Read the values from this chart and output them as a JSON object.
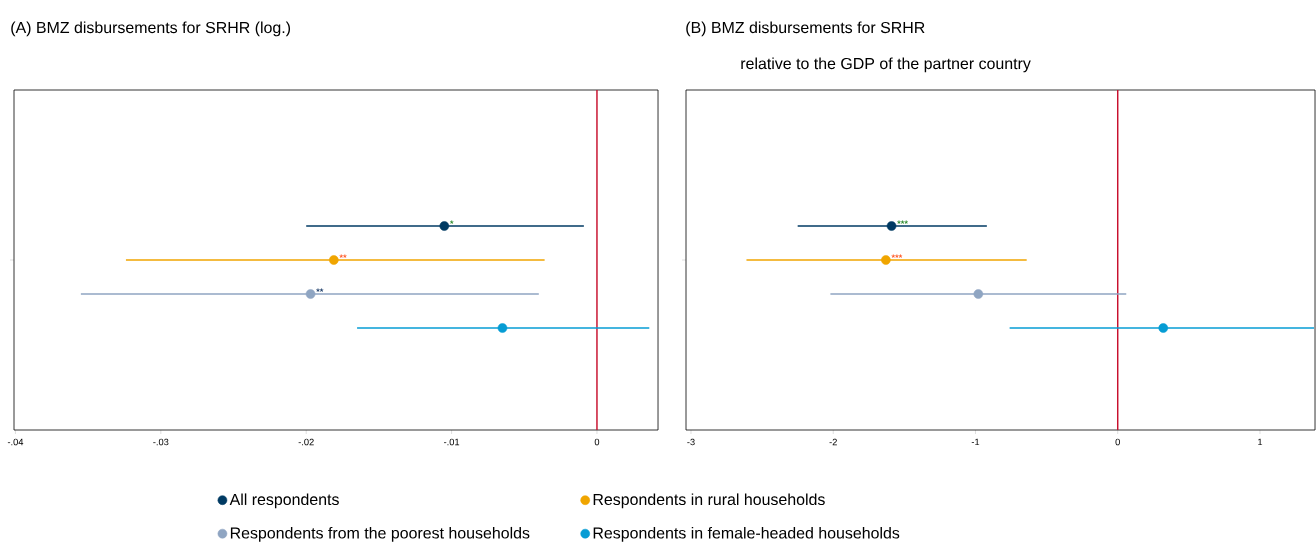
{
  "chart_data": [
    {
      "type": "scatter",
      "orientation": "horizontal",
      "title": "(A)   BMZ disbursements for SRHR (log.)",
      "categories": [
        null
      ],
      "xlim": [
        -0.0401,
        0.0042
      ],
      "xticks": [
        {
          "value": -0.04,
          "label": "-.04"
        },
        {
          "value": -0.03,
          "label": "-.03"
        },
        {
          "value": -0.02,
          "label": "-.02"
        },
        {
          "value": -0.01,
          "label": "-.01"
        },
        0
      ],
      "marker": "circle",
      "legend": "bottom",
      "ref_lines": [
        {
          "axis": "x",
          "value": 0,
          "color": "#c8102e"
        }
      ],
      "series": [
        {
          "name": "All respondents",
          "color": "#003a63",
          "values": [
            -0.0105
          ],
          "errors": [
            [
              -0.02,
              -0.0009
            ]
          ],
          "value_labels": [
            "*"
          ]
        },
        {
          "name": "Respondents in rural households",
          "color": "#f0a500",
          "values": [
            -0.0181
          ],
          "errors": [
            [
              -0.0324,
              -0.0036
            ]
          ],
          "value_labels": [
            "**"
          ]
        },
        {
          "name": "Respondents from the poorest households",
          "color": "#8fa5c2",
          "values": [
            -0.0197
          ],
          "errors": [
            [
              -0.0355,
              -0.004
            ]
          ],
          "value_labels": [
            "**"
          ]
        },
        {
          "name": "Respondents in female-headed households",
          "color": "#069cd4",
          "values": [
            -0.0065
          ],
          "errors": [
            [
              -0.0165,
              0.0036
            ]
          ],
          "value_labels": [
            null
          ]
        }
      ]
    },
    {
      "type": "scatter",
      "orientation": "horizontal",
      "title": "(B)   BMZ disbursements for SRHR",
      "subtitle": "relative to the GDP of the partner country",
      "categories": [
        null
      ],
      "xlim": [
        -3.035,
        1.387
      ],
      "xticks": [
        -3,
        -2,
        -1,
        0,
        1
      ],
      "marker": "circle",
      "ref_lines": [
        {
          "axis": "x",
          "value": 0,
          "color": "#c8102e"
        }
      ],
      "series": [
        {
          "color": "#003a63",
          "values": [
            -1.59
          ],
          "errors": [
            [
              -2.25,
              -0.92
            ]
          ],
          "value_labels": [
            "***"
          ]
        },
        {
          "color": "#f0a500",
          "values": [
            -1.63
          ],
          "errors": [
            [
              -2.61,
              -0.64
            ]
          ],
          "value_labels": [
            "***"
          ]
        },
        {
          "color": "#8fa5c2",
          "values": [
            -0.98
          ],
          "errors": [
            [
              -2.02,
              0.06
            ]
          ],
          "value_labels": [
            null
          ]
        },
        {
          "color": "#069cd4",
          "values": [
            0.32
          ],
          "errors": [
            [
              -0.76,
              1.38
            ]
          ],
          "value_labels": [
            null
          ]
        }
      ]
    }
  ]
}
